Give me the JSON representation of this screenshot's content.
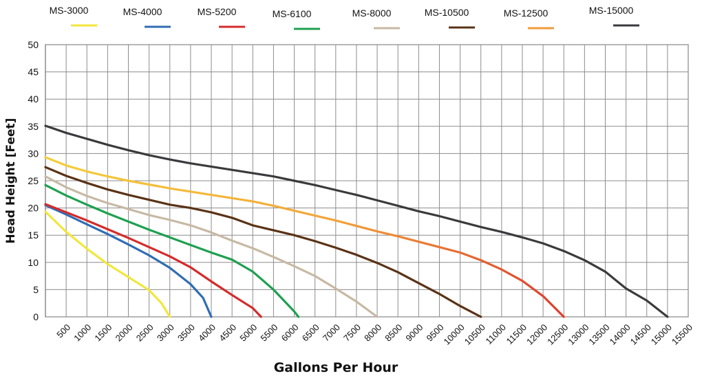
{
  "chart_data": {
    "type": "line",
    "title": "",
    "xlabel": "Gallons Per Hour",
    "ylabel": "Head Height [Feet]",
    "xlim": [
      0,
      15500
    ],
    "ylim": [
      0,
      50
    ],
    "grid": true,
    "legend_position": "top",
    "x_ticks": [
      500,
      1000,
      1500,
      2000,
      2500,
      3000,
      3500,
      4000,
      4500,
      5000,
      5500,
      6000,
      6500,
      7000,
      7500,
      8000,
      8500,
      9000,
      9500,
      10000,
      10500,
      11000,
      11500,
      12000,
      12500,
      13000,
      13500,
      14000,
      14500,
      15000,
      15500
    ],
    "x_tick_labels": [
      "500",
      "1000",
      "1500",
      "2000",
      "2500",
      "3000",
      "3500",
      "4000",
      "4500",
      "5000",
      "5500",
      "6000",
      "6500",
      "7000",
      "7500",
      "8000",
      "8500",
      "9000",
      "9500",
      "10000",
      "10500",
      "11000",
      "11500",
      "12000",
      "12500",
      "13000",
      "13500",
      "14000",
      "14500",
      "15000",
      "15500"
    ],
    "y_ticks": [
      0,
      5,
      10,
      15,
      20,
      25,
      30,
      35,
      40,
      45,
      50
    ],
    "y_tick_labels": [
      "0",
      "5",
      "10",
      "15",
      "20",
      "25",
      "30",
      "35",
      "40",
      "45",
      "50"
    ],
    "series": [
      {
        "name": "MS-3000",
        "color": "#f2e63a",
        "color_end": "#f2e63a",
        "x": [
          0,
          500,
          1000,
          1500,
          2000,
          2500,
          2800,
          3000
        ],
        "y": [
          19.3,
          15.6,
          12.5,
          9.7,
          7.3,
          4.9,
          2.5,
          0
        ]
      },
      {
        "name": "MS-4000",
        "color": "#2f6db5",
        "color_end": "#2f6db5",
        "x": [
          0,
          500,
          1000,
          1500,
          2000,
          2500,
          3000,
          3500,
          3800,
          4000
        ],
        "y": [
          20.5,
          18.8,
          17.0,
          15.2,
          13.3,
          11.3,
          9.0,
          6.0,
          3.5,
          0
        ]
      },
      {
        "name": "MS-5200",
        "color": "#d52b2b",
        "color_end": "#d52b2b",
        "x": [
          0,
          500,
          1000,
          1500,
          2000,
          2500,
          3000,
          3500,
          4000,
          4500,
          5000,
          5200
        ],
        "y": [
          20.7,
          19.2,
          17.7,
          16.1,
          14.5,
          12.8,
          11.1,
          9.1,
          6.5,
          4.0,
          1.6,
          0
        ]
      },
      {
        "name": "MS-6100",
        "color": "#1ea050",
        "color_end": "#1ea050",
        "x": [
          0,
          500,
          1000,
          1500,
          2000,
          2500,
          3000,
          3500,
          4000,
          4500,
          5000,
          5500,
          6000,
          6100
        ],
        "y": [
          24.2,
          22.3,
          20.6,
          19.0,
          17.5,
          16.0,
          14.6,
          13.2,
          11.8,
          10.5,
          8.3,
          5.0,
          1.0,
          0
        ]
      },
      {
        "name": "MS-8000",
        "color": "#c7b9a4",
        "color_end": "#c7b9a4",
        "x": [
          0,
          500,
          1000,
          1500,
          2000,
          2500,
          3000,
          3500,
          4000,
          4500,
          5000,
          5500,
          6000,
          6500,
          7000,
          7500,
          8000
        ],
        "y": [
          25.8,
          23.8,
          22.2,
          20.9,
          19.8,
          18.7,
          17.8,
          16.8,
          15.5,
          14.0,
          12.6,
          11.0,
          9.3,
          7.5,
          5.2,
          2.8,
          0
        ]
      },
      {
        "name": "MS-10500",
        "color": "#5a3215",
        "color_end": "#5a3215",
        "x": [
          0,
          500,
          1000,
          1500,
          2000,
          2500,
          3000,
          3500,
          4000,
          4500,
          5000,
          5500,
          6000,
          6500,
          7000,
          7500,
          8000,
          8500,
          9000,
          9500,
          10000,
          10500
        ],
        "y": [
          27.5,
          25.9,
          24.6,
          23.4,
          22.4,
          21.5,
          20.6,
          20.0,
          19.2,
          18.2,
          16.8,
          15.9,
          15.0,
          13.9,
          12.7,
          11.4,
          9.9,
          8.2,
          6.2,
          4.2,
          2.0,
          0
        ]
      },
      {
        "name": "MS-12500",
        "color": "#f5c93a",
        "color_end": "#df3e2c",
        "x": [
          0,
          500,
          1000,
          1500,
          2000,
          2500,
          3000,
          3500,
          4000,
          4500,
          5000,
          5500,
          6000,
          6500,
          7000,
          7500,
          8000,
          8500,
          9000,
          9500,
          10000,
          10500,
          11000,
          11500,
          12000,
          12500
        ],
        "y": [
          29.3,
          27.8,
          26.7,
          25.8,
          25.0,
          24.3,
          23.6,
          23.0,
          22.4,
          21.8,
          21.2,
          20.4,
          19.5,
          18.6,
          17.7,
          16.7,
          15.7,
          14.8,
          13.8,
          12.8,
          11.8,
          10.4,
          8.7,
          6.6,
          3.8,
          0
        ]
      },
      {
        "name": "MS-15000",
        "color": "#3a3a3c",
        "color_end": "#3a3a3c",
        "x": [
          0,
          500,
          1000,
          1500,
          2000,
          2500,
          3000,
          3500,
          4000,
          4500,
          5000,
          5500,
          6000,
          6500,
          7000,
          7500,
          8000,
          8500,
          9000,
          9500,
          10000,
          10500,
          11000,
          11500,
          12000,
          12500,
          13000,
          13500,
          14000,
          14500,
          15000
        ],
        "y": [
          35.1,
          33.8,
          32.7,
          31.6,
          30.6,
          29.7,
          28.9,
          28.2,
          27.6,
          27.0,
          26.4,
          25.8,
          25.0,
          24.2,
          23.3,
          22.4,
          21.4,
          20.4,
          19.4,
          18.5,
          17.5,
          16.5,
          15.6,
          14.6,
          13.5,
          12.1,
          10.4,
          8.3,
          5.2,
          3.0,
          0
        ]
      }
    ]
  }
}
